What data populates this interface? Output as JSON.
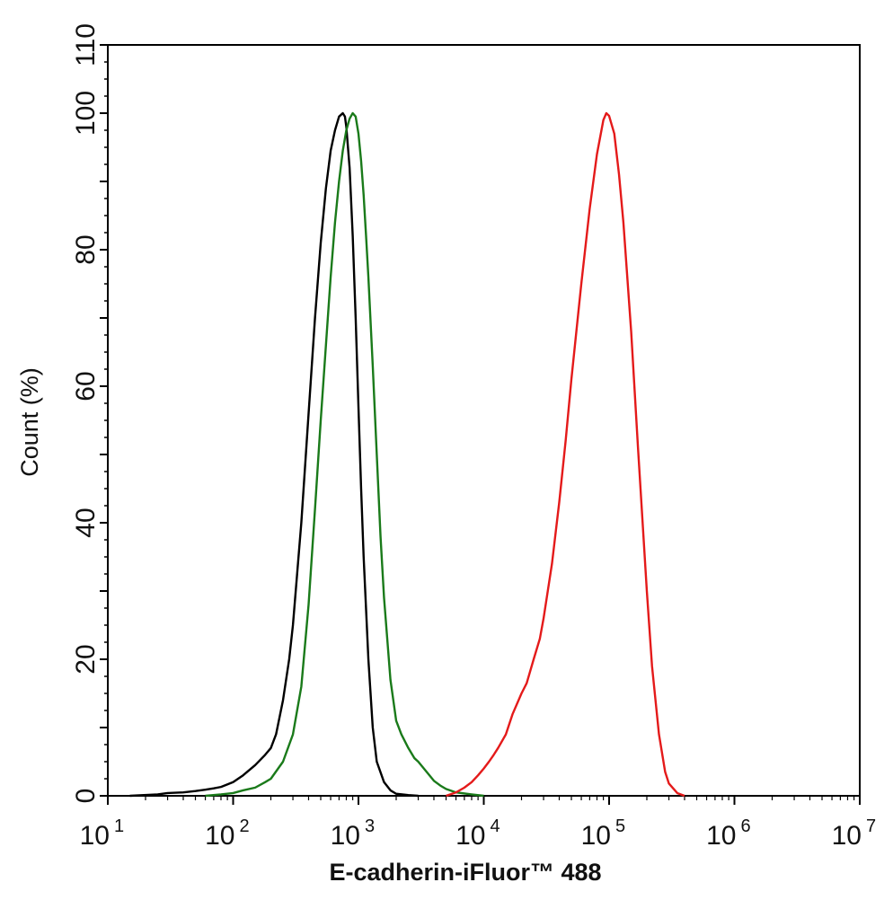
{
  "chart_data": {
    "type": "line",
    "xlabel": "E-cadherin-iFluor™ 488",
    "ylabel": "Count  (%)",
    "xscale": "log",
    "xlim": [
      10,
      10000000
    ],
    "ylim": [
      0,
      110
    ],
    "x_ticks": [
      {
        "value": 10,
        "base": "10",
        "exp": "1"
      },
      {
        "value": 100,
        "base": "10",
        "exp": "2"
      },
      {
        "value": 1000,
        "base": "10",
        "exp": "3"
      },
      {
        "value": 10000,
        "base": "10",
        "exp": "4"
      },
      {
        "value": 100000,
        "base": "10",
        "exp": "5"
      },
      {
        "value": 1000000,
        "base": "10",
        "exp": "6"
      },
      {
        "value": 10000000,
        "base": "10",
        "exp": "7"
      }
    ],
    "y_ticks": [
      0,
      20,
      40,
      60,
      80,
      100,
      110
    ],
    "grid": false,
    "legend": "none",
    "series": [
      {
        "color": "#000000",
        "x": [
          15,
          25,
          30,
          40,
          50,
          60,
          70,
          80,
          100,
          120,
          150,
          180,
          200,
          220,
          250,
          280,
          300,
          350,
          400,
          450,
          500,
          550,
          600,
          650,
          700,
          750,
          780,
          800,
          850,
          900,
          950,
          1000,
          1050,
          1100,
          1200,
          1300,
          1400,
          1600,
          1800,
          2000,
          2500,
          3000
        ],
        "y": [
          0,
          0.2,
          0.4,
          0.5,
          0.7,
          0.9,
          1.1,
          1.3,
          2.0,
          3.0,
          4.5,
          6.0,
          7.0,
          9.0,
          14,
          20,
          25,
          40,
          56,
          70,
          81,
          89,
          94.5,
          97.5,
          99.5,
          100,
          99.5,
          98,
          92,
          82,
          70,
          57,
          45,
          35,
          20,
          10,
          5,
          2.0,
          0.8,
          0.3,
          0.1,
          0
        ]
      },
      {
        "color": "#1a7a1a",
        "x": [
          60,
          80,
          100,
          120,
          150,
          180,
          200,
          250,
          300,
          350,
          400,
          450,
          500,
          550,
          600,
          650,
          700,
          750,
          800,
          850,
          900,
          950,
          1000,
          1050,
          1100,
          1150,
          1200,
          1300,
          1400,
          1500,
          1600,
          1800,
          2000,
          2200,
          2500,
          2800,
          3000,
          3500,
          4000,
          4500,
          5000,
          6000,
          8000,
          10000
        ],
        "y": [
          0,
          0.2,
          0.4,
          0.8,
          1.2,
          2.0,
          2.5,
          5,
          9,
          16,
          28,
          42,
          55,
          66,
          76,
          84,
          90,
          94.5,
          97.5,
          99.2,
          100,
          99.5,
          97,
          93,
          88,
          82,
          76,
          63,
          50,
          38,
          29,
          17,
          11,
          9,
          7,
          5.5,
          5,
          3.5,
          2.2,
          1.5,
          1.0,
          0.5,
          0.2,
          0
        ]
      },
      {
        "color": "#e41a1a",
        "x": [
          5000,
          6000,
          7000,
          8000,
          9000,
          10000,
          11000,
          12000,
          13000,
          15000,
          17000,
          20000,
          22000,
          25000,
          28000,
          30000,
          35000,
          40000,
          45000,
          50000,
          60000,
          70000,
          80000,
          90000,
          95000,
          100000,
          110000,
          120000,
          130000,
          150000,
          170000,
          200000,
          220000,
          250000,
          280000,
          300000,
          350000,
          400000
        ],
        "y": [
          0,
          0.5,
          1.2,
          2.0,
          3.0,
          4.0,
          5.0,
          6.0,
          7.0,
          9.0,
          12,
          15,
          16.5,
          20,
          23,
          26,
          34,
          43,
          52,
          61,
          75,
          86,
          94,
          99,
          100,
          99.6,
          97,
          91,
          84,
          68,
          51,
          30,
          19,
          9,
          3.5,
          1.8,
          0.4,
          0
        ]
      }
    ]
  }
}
